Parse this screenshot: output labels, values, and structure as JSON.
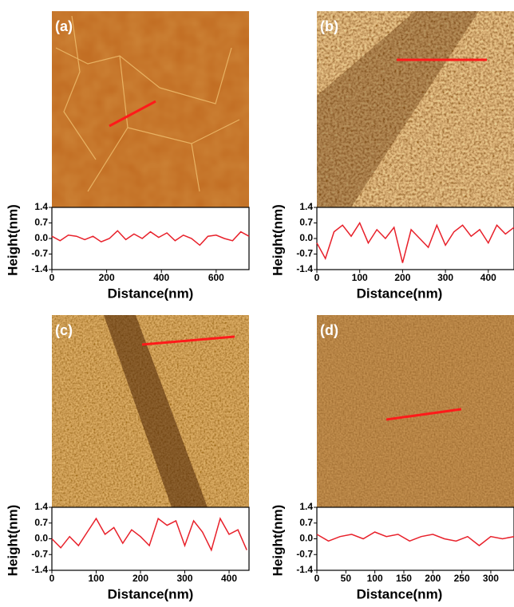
{
  "chart_data": [
    {
      "type": "line",
      "panel_label": "(a)",
      "x_label": "Distance(nm)",
      "y_label": "Height(nm)",
      "x": [
        0,
        30,
        60,
        90,
        120,
        150,
        180,
        210,
        240,
        270,
        300,
        330,
        360,
        390,
        420,
        450,
        480,
        510,
        540,
        570,
        600,
        630,
        660,
        690,
        720
      ],
      "series": [
        {
          "color": "#e8202a",
          "values": [
            0.1,
            -0.1,
            0.15,
            0.1,
            -0.05,
            0.1,
            -0.15,
            0.0,
            0.35,
            -0.05,
            0.2,
            0.0,
            0.3,
            0.05,
            0.25,
            -0.1,
            0.15,
            0.0,
            -0.3,
            0.1,
            0.15,
            0.0,
            -0.1,
            0.3,
            0.1
          ]
        }
      ],
      "xlim": [
        0,
        720
      ],
      "xticks": [
        0,
        200,
        400,
        600
      ],
      "ylim": [
        -1.4,
        1.4
      ],
      "yticks": [
        1.4,
        0.7,
        {
          "value": 0,
          "label": "0.0"
        },
        -0.7,
        -1.4
      ]
    },
    {
      "type": "line",
      "panel_label": "(b)",
      "x_label": "Distance(nm)",
      "y_label": "Height(nm)",
      "x": [
        0,
        20,
        40,
        60,
        80,
        100,
        120,
        140,
        160,
        180,
        200,
        220,
        240,
        260,
        280,
        300,
        320,
        340,
        360,
        380,
        400,
        420,
        440,
        460
      ],
      "series": [
        {
          "color": "#e8202a",
          "values": [
            -0.2,
            -0.9,
            0.3,
            0.6,
            0.1,
            0.7,
            -0.2,
            0.4,
            0.0,
            0.5,
            -1.1,
            0.4,
            0.0,
            -0.4,
            0.6,
            -0.3,
            0.3,
            0.6,
            0.1,
            0.4,
            -0.2,
            0.6,
            0.2,
            0.5
          ]
        }
      ],
      "xlim": [
        0,
        460
      ],
      "xticks": [
        0,
        100,
        200,
        300,
        400
      ],
      "ylim": [
        -1.4,
        1.4
      ],
      "yticks": [
        1.4,
        0.7,
        {
          "value": 0,
          "label": "0.0"
        },
        -0.7,
        -1.4
      ]
    },
    {
      "type": "line",
      "panel_label": "(c)",
      "x_label": "Distance(nm)",
      "y_label": "Height(nm)",
      "x": [
        0,
        20,
        40,
        60,
        80,
        100,
        120,
        140,
        160,
        180,
        200,
        220,
        240,
        260,
        280,
        300,
        320,
        340,
        360,
        380,
        400,
        420,
        440
      ],
      "series": [
        {
          "color": "#e8202a",
          "values": [
            0.0,
            -0.4,
            0.1,
            -0.3,
            0.3,
            0.9,
            0.2,
            0.5,
            -0.2,
            0.4,
            0.1,
            -0.3,
            0.9,
            0.6,
            0.8,
            -0.3,
            0.8,
            0.3,
            -0.5,
            0.9,
            0.2,
            0.4,
            -0.5
          ]
        }
      ],
      "xlim": [
        0,
        445
      ],
      "xticks": [
        0,
        100,
        200,
        300,
        400
      ],
      "ylim": [
        -1.4,
        1.4
      ],
      "yticks": [
        1.4,
        0.7,
        {
          "value": 0,
          "label": "0.0"
        },
        -0.7,
        -1.4
      ]
    },
    {
      "type": "line",
      "panel_label": "(d)",
      "x_label": "Distance(nm)",
      "y_label": "Height(nm)",
      "x": [
        0,
        20,
        40,
        60,
        80,
        100,
        120,
        140,
        160,
        180,
        200,
        220,
        240,
        260,
        280,
        300,
        320,
        340
      ],
      "series": [
        {
          "color": "#e8202a",
          "values": [
            0.2,
            -0.1,
            0.1,
            0.2,
            0.0,
            0.3,
            0.1,
            0.2,
            -0.1,
            0.1,
            0.2,
            0.0,
            -0.1,
            0.1,
            -0.3,
            0.1,
            0.0,
            0.1
          ]
        }
      ],
      "xlim": [
        0,
        340
      ],
      "xticks": [
        0,
        50,
        100,
        150,
        200,
        250,
        300
      ],
      "ylim": [
        -1.4,
        1.4
      ],
      "yticks": [
        1.4,
        0.7,
        {
          "value": 0,
          "label": "0.0"
        },
        -0.7,
        -1.4
      ]
    }
  ]
}
